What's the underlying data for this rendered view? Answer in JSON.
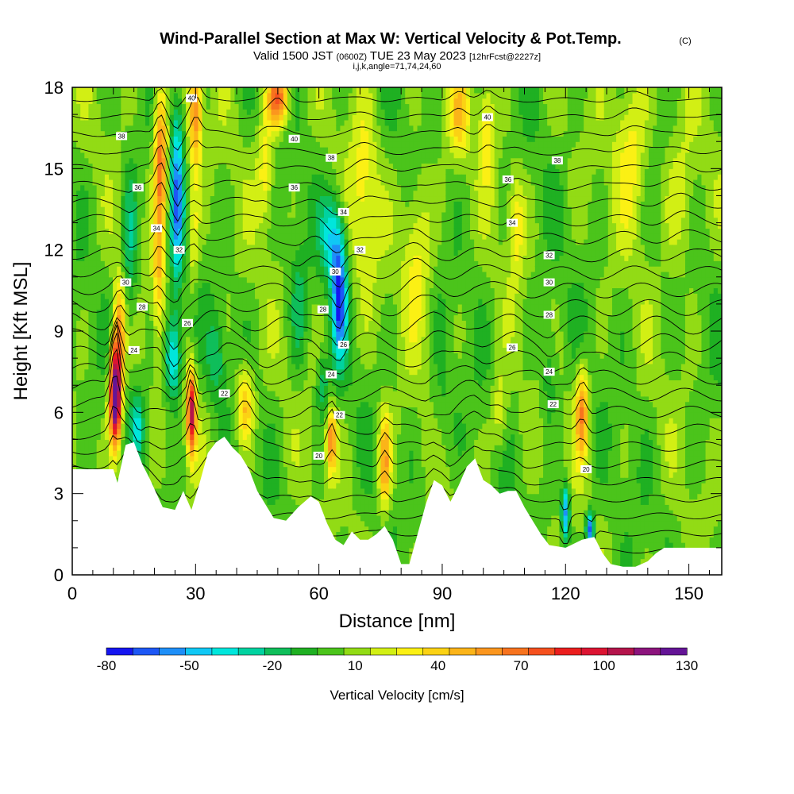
{
  "chart_data": {
    "type": "heatmap",
    "title": "Wind-Parallel Section at Max W: Vertical Velocity & Pot.Temp.",
    "title_mark": "(C)",
    "subtitle": {
      "valid_prefix": "Valid 1500 JST",
      "utc": "(0600Z)",
      "date": "TUE 23 May 2023",
      "forecast": "[12hrFcst@2227z]"
    },
    "indices": "i,j,k,angle=71,74,24,60",
    "xlabel": "Distance [nm]",
    "ylabel": "Height [Kft MSL]",
    "xlim": [
      0,
      158
    ],
    "ylim": [
      0,
      18
    ],
    "x_ticks": [
      "0",
      "30",
      "60",
      "90",
      "120",
      "150"
    ],
    "y_ticks": [
      "0",
      "3",
      "6",
      "9",
      "12",
      "15",
      "18"
    ],
    "x_tick_values": [
      0,
      30,
      60,
      90,
      120,
      150
    ],
    "y_tick_values": [
      0,
      3,
      6,
      9,
      12,
      15,
      18
    ],
    "grid": false,
    "colorbar": {
      "label": "Vertical Velocity [cm/s]",
      "min": -80,
      "max": 130,
      "step": 10,
      "tick_labels": [
        "-80",
        "-50",
        "-20",
        "10",
        "40",
        "70",
        "100",
        "130"
      ],
      "tick_values": [
        -80,
        -50,
        -20,
        10,
        40,
        70,
        100,
        130
      ],
      "colors": [
        "#1515f0",
        "#1d57f5",
        "#1e8ff8",
        "#10c8f5",
        "#00e6dc",
        "#00d2a0",
        "#0fbe5a",
        "#1fb022",
        "#4bc41b",
        "#92db15",
        "#d2ef14",
        "#fbf014",
        "#fbd214",
        "#fbb419",
        "#fb961e",
        "#f7731e",
        "#f5501e",
        "#eb1e1e",
        "#dc1432",
        "#b4144b",
        "#8c147d",
        "#641496"
      ]
    },
    "terrain_kft": [
      [
        0,
        3.9
      ],
      [
        10,
        3.9
      ],
      [
        11,
        3.4
      ],
      [
        13,
        4.8
      ],
      [
        15,
        4.9
      ],
      [
        17,
        4.1
      ],
      [
        19,
        3.5
      ],
      [
        22,
        2.5
      ],
      [
        25,
        2.4
      ],
      [
        27,
        3.1
      ],
      [
        29,
        2.4
      ],
      [
        31,
        3.4
      ],
      [
        33,
        4.5
      ],
      [
        35,
        4.9
      ],
      [
        37,
        5.1
      ],
      [
        39,
        4.7
      ],
      [
        41,
        4.4
      ],
      [
        43,
        3.9
      ],
      [
        45,
        3.1
      ],
      [
        47,
        2.6
      ],
      [
        49,
        2.1
      ],
      [
        52,
        2.0
      ],
      [
        55,
        2.5
      ],
      [
        58,
        2.9
      ],
      [
        60,
        2.7
      ],
      [
        62,
        1.9
      ],
      [
        64,
        1.3
      ],
      [
        66,
        1.1
      ],
      [
        68,
        1.6
      ],
      [
        70,
        1.3
      ],
      [
        72,
        1.3
      ],
      [
        74,
        1.5
      ],
      [
        76,
        1.8
      ],
      [
        78,
        1.3
      ],
      [
        80,
        0.4
      ],
      [
        82,
        0.4
      ],
      [
        84,
        1.5
      ],
      [
        86,
        2.6
      ],
      [
        88,
        3.5
      ],
      [
        90,
        3.3
      ],
      [
        92,
        2.7
      ],
      [
        94,
        3.3
      ],
      [
        96,
        4.0
      ],
      [
        98,
        4.3
      ],
      [
        100,
        3.5
      ],
      [
        102,
        3.3
      ],
      [
        104,
        3.0
      ],
      [
        106,
        3.1
      ],
      [
        108,
        3.1
      ],
      [
        110,
        2.5
      ],
      [
        112,
        2.0
      ],
      [
        114,
        1.5
      ],
      [
        116,
        1.1
      ],
      [
        120,
        1.0
      ],
      [
        124,
        1.3
      ],
      [
        127,
        1.4
      ],
      [
        129,
        0.8
      ],
      [
        131,
        0.4
      ],
      [
        134,
        0.3
      ],
      [
        137,
        0.3
      ],
      [
        140,
        0.5
      ],
      [
        142,
        0.8
      ],
      [
        144,
        1.0
      ],
      [
        158,
        1.0
      ]
    ],
    "w_features": [
      {
        "x": 10.5,
        "y": 6.6,
        "sx": 1.4,
        "sy": 1.7,
        "w": 150
      },
      {
        "x": 11.5,
        "y": 9.0,
        "sx": 1.5,
        "sy": 2.0,
        "w": 55
      },
      {
        "x": 16.0,
        "y": 5.5,
        "sx": 1.6,
        "sy": 1.2,
        "w": -35
      },
      {
        "x": 14.0,
        "y": 12.0,
        "sx": 2.0,
        "sy": 3.0,
        "w": -30
      },
      {
        "x": 21.5,
        "y": 15.5,
        "sx": 1.6,
        "sy": 2.8,
        "w": 70
      },
      {
        "x": 21.0,
        "y": 11.0,
        "sx": 1.4,
        "sy": 2.5,
        "w": 35
      },
      {
        "x": 25.5,
        "y": 14.0,
        "sx": 1.5,
        "sy": 3.5,
        "w": -60
      },
      {
        "x": 24.5,
        "y": 8.0,
        "sx": 2.0,
        "sy": 1.6,
        "w": -55
      },
      {
        "x": 29.0,
        "y": 6.0,
        "sx": 1.1,
        "sy": 1.5,
        "w": 105
      },
      {
        "x": 30.0,
        "y": 17.0,
        "sx": 1.6,
        "sy": 2.0,
        "w": 60
      },
      {
        "x": 29.5,
        "y": 12.5,
        "sx": 1.4,
        "sy": 2.0,
        "w": 25
      },
      {
        "x": 42.0,
        "y": 6.3,
        "sx": 2.0,
        "sy": 1.4,
        "w": 45
      },
      {
        "x": 35.0,
        "y": 8.0,
        "sx": 2.0,
        "sy": 1.5,
        "w": -25
      },
      {
        "x": 50.0,
        "y": 17.6,
        "sx": 2.6,
        "sy": 1.0,
        "w": 75
      },
      {
        "x": 47.0,
        "y": 15.0,
        "sx": 2.0,
        "sy": 2.0,
        "w": 30
      },
      {
        "x": 55.0,
        "y": 10.0,
        "sx": 2.0,
        "sy": 2.5,
        "w": -20
      },
      {
        "x": 65.0,
        "y": 10.3,
        "sx": 1.8,
        "sy": 2.3,
        "w": -75
      },
      {
        "x": 63.0,
        "y": 12.5,
        "sx": 2.5,
        "sy": 1.5,
        "w": -40
      },
      {
        "x": 61.0,
        "y": 7.0,
        "sx": 1.5,
        "sy": 1.2,
        "w": -25
      },
      {
        "x": 63.0,
        "y": 5.0,
        "sx": 1.2,
        "sy": 1.2,
        "w": 60
      },
      {
        "x": 76.0,
        "y": 4.2,
        "sx": 1.5,
        "sy": 1.8,
        "w": 55
      },
      {
        "x": 71.0,
        "y": 14.0,
        "sx": 3.5,
        "sy": 3.5,
        "w": 25
      },
      {
        "x": 84.0,
        "y": 12.0,
        "sx": 3.5,
        "sy": 3.0,
        "w": 28
      },
      {
        "x": 94.0,
        "y": 17.0,
        "sx": 2.5,
        "sy": 1.5,
        "w": 35
      },
      {
        "x": 101.0,
        "y": 16.5,
        "sx": 2.0,
        "sy": 2.0,
        "w": 30
      },
      {
        "x": 108.0,
        "y": 13.0,
        "sx": 2.0,
        "sy": 2.0,
        "w": 28
      },
      {
        "x": 124.0,
        "y": 6.0,
        "sx": 1.6,
        "sy": 1.7,
        "w": 60
      },
      {
        "x": 120.0,
        "y": 2.3,
        "sx": 1.0,
        "sy": 1.0,
        "w": -65
      },
      {
        "x": 126.0,
        "y": 1.7,
        "sx": 1.0,
        "sy": 0.6,
        "w": -75
      },
      {
        "x": 116.0,
        "y": 7.5,
        "sx": 2.0,
        "sy": 2.0,
        "w": -20
      },
      {
        "x": 136.0,
        "y": 16.0,
        "sx": 4.0,
        "sy": 3.0,
        "w": 28
      },
      {
        "x": 148.0,
        "y": 14.0,
        "sx": 4.0,
        "sy": 3.0,
        "w": 20
      },
      {
        "x": 104.0,
        "y": 6.0,
        "sx": 2.0,
        "sy": 1.5,
        "w": 25
      },
      {
        "x": 90.0,
        "y": 6.0,
        "sx": 3.0,
        "sy": 2.0,
        "w": -12
      }
    ],
    "isentropes": {
      "base_K": 16,
      "interval_K": 1,
      "count": 30,
      "labels": [
        {
          "text": "40",
          "x": 29.0,
          "y": 17.6
        },
        {
          "text": "38",
          "x": 12.0,
          "y": 16.2
        },
        {
          "text": "36",
          "x": 16.0,
          "y": 14.3
        },
        {
          "text": "34",
          "x": 20.5,
          "y": 12.8
        },
        {
          "text": "32",
          "x": 26.0,
          "y": 12.0
        },
        {
          "text": "30",
          "x": 13.0,
          "y": 10.8
        },
        {
          "text": "28",
          "x": 17.0,
          "y": 9.9
        },
        {
          "text": "26",
          "x": 28.0,
          "y": 9.3
        },
        {
          "text": "24",
          "x": 15.0,
          "y": 8.3
        },
        {
          "text": "22",
          "x": 37.0,
          "y": 6.7
        },
        {
          "text": "40",
          "x": 54.0,
          "y": 16.1
        },
        {
          "text": "38",
          "x": 63.0,
          "y": 15.4
        },
        {
          "text": "36",
          "x": 54.0,
          "y": 14.3
        },
        {
          "text": "34",
          "x": 66.0,
          "y": 13.4
        },
        {
          "text": "32",
          "x": 70.0,
          "y": 12.0
        },
        {
          "text": "30",
          "x": 64.0,
          "y": 11.2
        },
        {
          "text": "28",
          "x": 61.0,
          "y": 9.8
        },
        {
          "text": "26",
          "x": 66.0,
          "y": 8.5
        },
        {
          "text": "24",
          "x": 63.0,
          "y": 7.4
        },
        {
          "text": "22",
          "x": 65.0,
          "y": 5.9
        },
        {
          "text": "20",
          "x": 60.0,
          "y": 4.4
        },
        {
          "text": "40",
          "x": 101.0,
          "y": 16.9
        },
        {
          "text": "38",
          "x": 118.0,
          "y": 15.3
        },
        {
          "text": "36",
          "x": 106.0,
          "y": 14.6
        },
        {
          "text": "34",
          "x": 107.0,
          "y": 13.0
        },
        {
          "text": "32",
          "x": 116.0,
          "y": 11.8
        },
        {
          "text": "30",
          "x": 116.0,
          "y": 10.8
        },
        {
          "text": "28",
          "x": 116.0,
          "y": 9.6
        },
        {
          "text": "26",
          "x": 107.0,
          "y": 8.4
        },
        {
          "text": "24",
          "x": 116.0,
          "y": 7.5
        },
        {
          "text": "22",
          "x": 117.0,
          "y": 6.3
        },
        {
          "text": "20",
          "x": 125.0,
          "y": 3.9
        }
      ]
    }
  }
}
